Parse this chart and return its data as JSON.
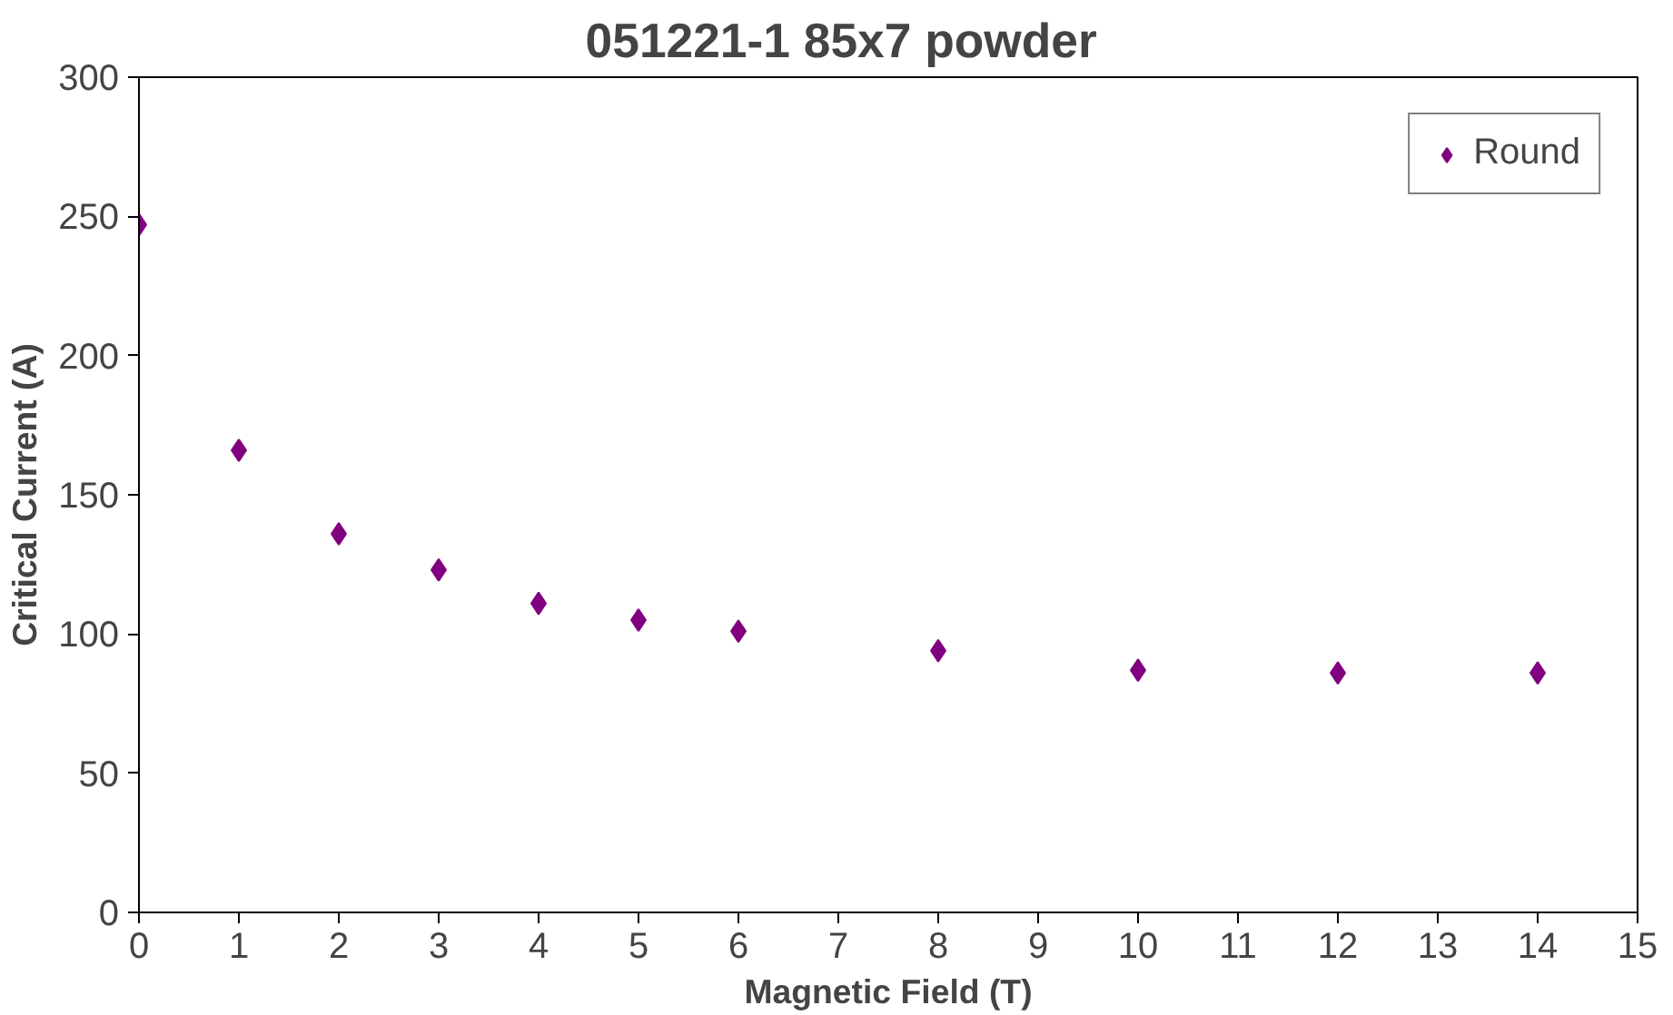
{
  "chart_data": {
    "type": "scatter",
    "title": "051221-1      85x7   powder",
    "xlabel": "Magnetic Field (T)",
    "ylabel": "Critical Current (A)",
    "x": [
      0,
      1,
      2,
      3,
      4,
      5,
      6,
      8,
      10,
      12,
      14
    ],
    "series": [
      {
        "name": "Round",
        "color": "#800080",
        "values": [
          247,
          166,
          136,
          123,
          111,
          105,
          101,
          94,
          87,
          86,
          86
        ]
      }
    ],
    "xlim": [
      0,
      15
    ],
    "xticks": [
      0,
      1,
      2,
      3,
      4,
      5,
      6,
      7,
      8,
      9,
      10,
      11,
      12,
      13,
      14,
      15
    ],
    "ylim": [
      0,
      300
    ],
    "yticks": [
      0,
      50,
      100,
      150,
      200,
      250,
      300
    ],
    "grid": false,
    "legend": "top right",
    "marker": "diamond"
  }
}
